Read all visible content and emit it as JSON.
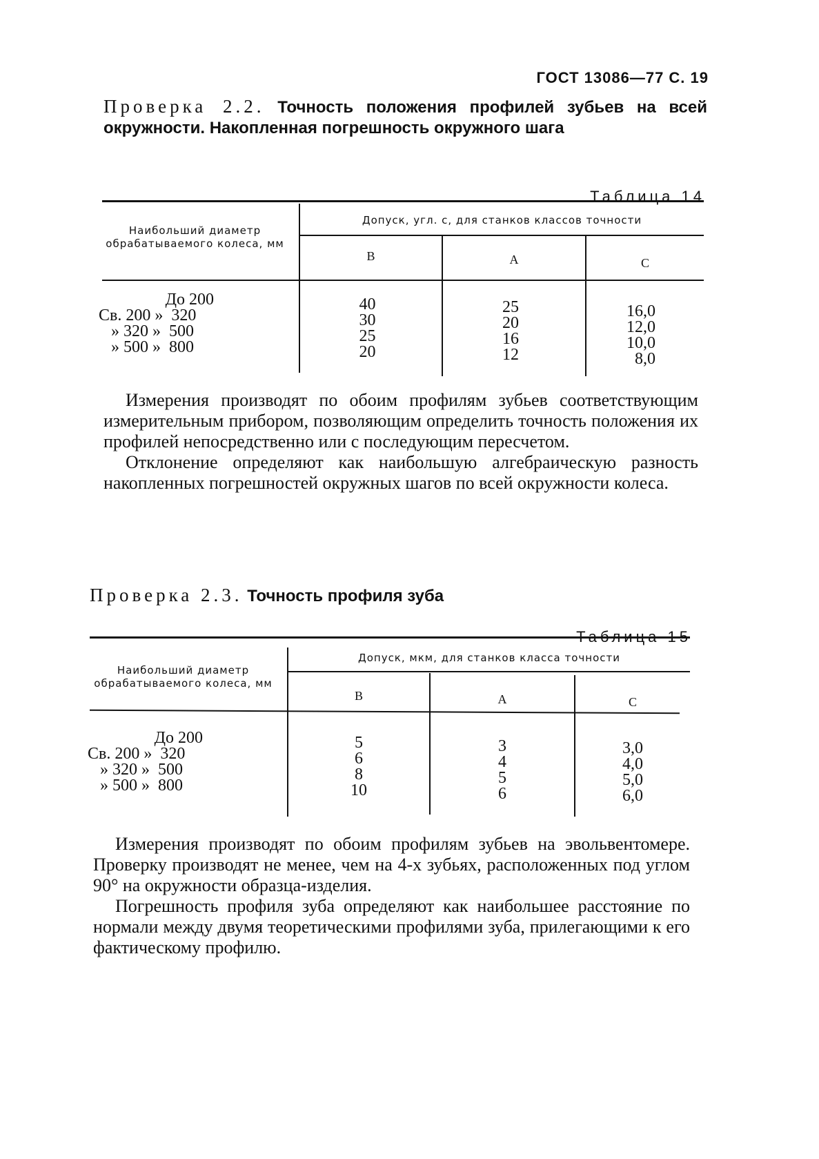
{
  "header": "ГОСТ 13086—77 С. 19",
  "section1": {
    "prefix": "Проверка 2.2.",
    "title": "Точность положения профилей зубьев на всей окружности. Накопленная погрешность окружного шага"
  },
  "table14": {
    "title": "Таблица 14",
    "col0": "Наибольший диаметр обрабатываемого колеса, мм",
    "group": "Допуск, угл. с, для станков классов точности",
    "classes": [
      "В",
      "А",
      "С"
    ],
    "ranges": [
      "До 200",
      "Св. 200 »  320",
      "» 320 »  500",
      "» 500 »  800"
    ],
    "B": [
      "40",
      "30",
      "25",
      "20"
    ],
    "A": [
      "25",
      "20",
      "16",
      "12"
    ],
    "C": [
      "16,0",
      "12,0",
      "10,0",
      "8,0"
    ]
  },
  "para1": [
    "Измерения производят по обоим профилям зубьев соответствующим измерительным прибором, позволяющим определить точность положения их профилей непосредственно или с последующим пересчетом.",
    "Отклонение определяют как наибольшую алгебраическую разность накопленных погрешностей окружных шагов по всей окружности колеса."
  ],
  "section2": {
    "prefix": "Проверка 2.3.",
    "title": "Точность профиля зуба"
  },
  "table15": {
    "title": "Таблица 15",
    "col0": "Наибольший диаметр обрабатываемого колеса, мм",
    "group": "Допуск, мкм, для станков класса точности",
    "classes": [
      "В",
      "А",
      "С"
    ],
    "ranges": [
      "До 200",
      "Св. 200 »  320",
      "» 320 »  500",
      "» 500 »  800"
    ],
    "B": [
      "5",
      "6",
      "8",
      "10"
    ],
    "A": [
      "3",
      "4",
      "5",
      "6"
    ],
    "C": [
      "3,0",
      "4,0",
      "5,0",
      "6,0"
    ]
  },
  "para2": [
    "Измерения производят по обоим профилям зубьев на эвольвентомере. Проверку производят не менее, чем на 4-х зубьях, расположенных под углом 90° на окружности образца-изделия.",
    "Погрешность профиля зуба определяют как наибольшее расстояние по нормали между двумя теоретическими профилями зуба, прилегающими к его фактическому профилю."
  ]
}
